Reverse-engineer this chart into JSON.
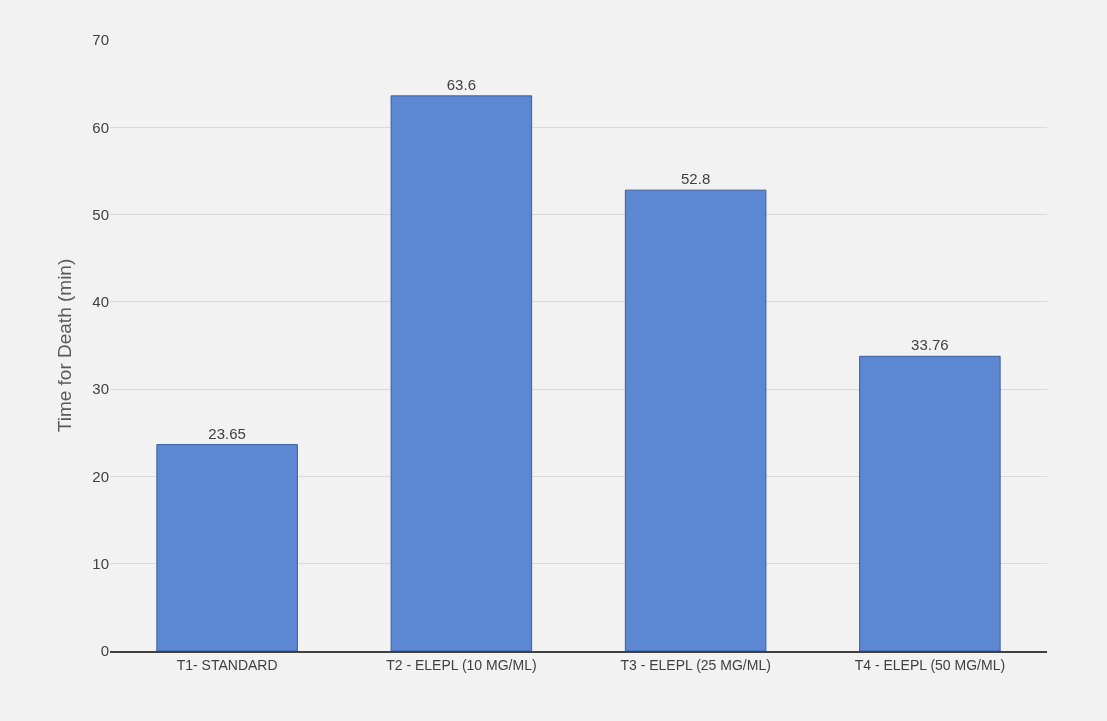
{
  "chart_data": {
    "type": "bar",
    "ylabel": "Time for Death (min)",
    "categories": [
      "T1- STANDARD",
      "T2 - ELEPL (10 MG/ML)",
      "T3 - ELEPL (25 MG/ML)",
      "T4 - ELEPL (50 MG/ML)"
    ],
    "values": [
      23.65,
      63.6,
      52.8,
      33.76
    ],
    "color": "#5b87d3",
    "ylim": [
      0,
      70
    ],
    "yticks": [
      0,
      10,
      20,
      30,
      40,
      50,
      60,
      70
    ],
    "grid": "y",
    "data_labels": true
  }
}
